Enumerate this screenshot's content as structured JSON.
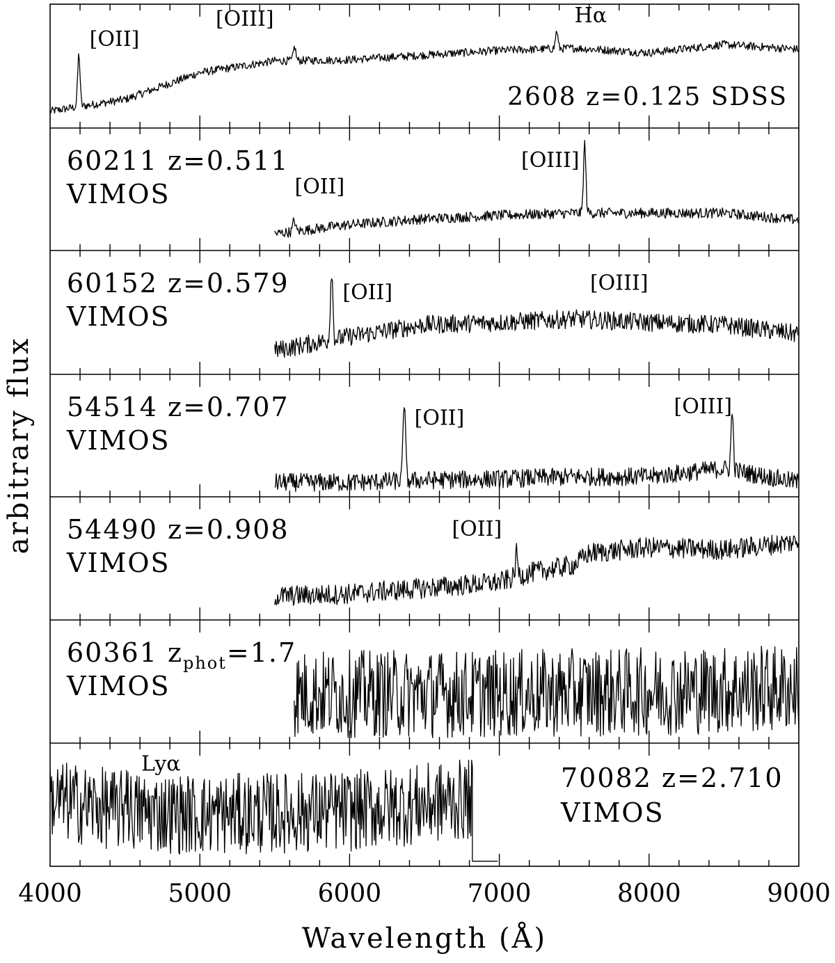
{
  "chart_data": {
    "type": "line",
    "title": "",
    "xlabel": "Wavelength (Å)",
    "ylabel": "arbitrary flux",
    "xlim": [
      4000,
      9000
    ],
    "x_ticks": [
      "4000",
      "5000",
      "6000",
      "7000",
      "8000",
      "9000"
    ],
    "x_tick_values": [
      4000,
      5000,
      6000,
      7000,
      8000,
      9000
    ],
    "minor_tick_step": 200,
    "grid": false,
    "panels": [
      {
        "id": "2608",
        "label": "2608  z=0.125  SDSS",
        "label_position": "right",
        "redshift": 0.125,
        "survey": "SDSS",
        "wavelength_range": [
          4000,
          9000
        ],
        "noise": 0.035,
        "continuum": [
          [
            4000,
            0.12
          ],
          [
            4500,
            0.22
          ],
          [
            5000,
            0.45
          ],
          [
            5500,
            0.55
          ],
          [
            6000,
            0.56
          ],
          [
            6500,
            0.6
          ],
          [
            7000,
            0.64
          ],
          [
            7500,
            0.66
          ],
          [
            8000,
            0.62
          ],
          [
            8500,
            0.69
          ],
          [
            9000,
            0.65
          ]
        ],
        "lines": [
          {
            "label": "[OII]",
            "wavelength": 4192,
            "peak": 0.45,
            "label_at": [
              4430,
              0.68
            ]
          },
          {
            "label": "[OIII]",
            "wavelength": 5633,
            "peak": 0.12,
            "label_at": [
              5300,
              0.85
            ]
          },
          {
            "label": "Hα",
            "wavelength": 7383,
            "peak": 0.15,
            "label_at": [
              7610,
              0.88
            ]
          }
        ]
      },
      {
        "id": "60211",
        "label_line1": "60211  z=0.511",
        "label_line2": "VIMOS",
        "label_position": "left",
        "redshift": 0.511,
        "survey": "VIMOS",
        "wavelength_range": [
          5500,
          9000
        ],
        "noise": 0.045,
        "continuum": [
          [
            5500,
            0.12
          ],
          [
            6000,
            0.2
          ],
          [
            6500,
            0.25
          ],
          [
            7000,
            0.28
          ],
          [
            7500,
            0.3
          ],
          [
            8000,
            0.3
          ],
          [
            8500,
            0.3
          ],
          [
            9000,
            0.24
          ]
        ],
        "lines": [
          {
            "label": "[OII]",
            "wavelength": 5630,
            "peak": 0.1,
            "label_at": [
              5800,
              0.47
            ]
          },
          {
            "label": "[OIII]",
            "wavelength": 7570,
            "peak": 0.6,
            "label_at": [
              7340,
              0.7
            ]
          }
        ]
      },
      {
        "id": "60152",
        "label_line1": "60152  z=0.579",
        "label_line2": "VIMOS",
        "label_position": "left",
        "redshift": 0.579,
        "survey": "VIMOS",
        "wavelength_range": [
          5500,
          9000
        ],
        "noise": 0.08,
        "continuum": [
          [
            5500,
            0.18
          ],
          [
            6000,
            0.3
          ],
          [
            6500,
            0.4
          ],
          [
            7000,
            0.42
          ],
          [
            7500,
            0.45
          ],
          [
            8000,
            0.42
          ],
          [
            8500,
            0.4
          ],
          [
            9000,
            0.32
          ]
        ],
        "lines": [
          {
            "label": "[OII]",
            "wavelength": 5880,
            "peak": 0.6,
            "label_at": [
              6120,
              0.62
            ]
          },
          {
            "label": "[OIII]",
            "wavelength": 7900,
            "peak": 0.0,
            "label_at": [
              7800,
              0.7
            ]
          }
        ]
      },
      {
        "id": "54514",
        "label_line1": "54514  z=0.707",
        "label_line2": "VIMOS",
        "label_position": "left",
        "redshift": 0.707,
        "survey": "VIMOS",
        "wavelength_range": [
          5500,
          9000
        ],
        "noise": 0.08,
        "continuum": [
          [
            5500,
            0.1
          ],
          [
            6000,
            0.1
          ],
          [
            6500,
            0.12
          ],
          [
            7000,
            0.13
          ],
          [
            7500,
            0.15
          ],
          [
            8000,
            0.15
          ],
          [
            8500,
            0.22
          ],
          [
            9000,
            0.1
          ]
        ],
        "lines": [
          {
            "label": "[OII]",
            "wavelength": 6365,
            "peak": 0.7,
            "label_at": [
              6600,
              0.6
            ]
          },
          {
            "label": "[OIII]",
            "wavelength": 8555,
            "peak": 0.5,
            "label_at": [
              8360,
              0.7
            ]
          }
        ]
      },
      {
        "id": "54490",
        "label_line1": "54490  z=0.908",
        "label_line2": "VIMOS",
        "label_position": "left",
        "redshift": 0.908,
        "survey": "VIMOS",
        "wavelength_range": [
          5500,
          9000
        ],
        "noise": 0.09,
        "continuum": [
          [
            5500,
            0.18
          ],
          [
            6000,
            0.2
          ],
          [
            6500,
            0.25
          ],
          [
            7000,
            0.3
          ],
          [
            7200,
            0.38
          ],
          [
            7500,
            0.45
          ],
          [
            7600,
            0.55
          ],
          [
            8000,
            0.6
          ],
          [
            8500,
            0.58
          ],
          [
            9000,
            0.65
          ]
        ],
        "lines": [
          {
            "label": "[OII]",
            "wavelength": 7115,
            "peak": 0.2,
            "label_at": [
              6850,
              0.7
            ]
          }
        ]
      },
      {
        "id": "60361",
        "label_line1": "60361  zphot=1.7",
        "label_line2": "VIMOS",
        "label_position": "left",
        "redshift_phot": 1.7,
        "survey": "VIMOS",
        "wavelength_range": [
          5630,
          9000
        ],
        "noise": 0.38,
        "continuum": [
          [
            5630,
            0.4
          ],
          [
            7000,
            0.4
          ],
          [
            8000,
            0.42
          ],
          [
            9000,
            0.45
          ]
        ],
        "lines": []
      },
      {
        "id": "70082",
        "label_line1": "70082  z=2.710",
        "label_line2": "VIMOS",
        "label_position": "right",
        "redshift": 2.71,
        "survey": "VIMOS",
        "wavelength_range": [
          4000,
          6820
        ],
        "noise": 0.35,
        "continuum": [
          [
            4000,
            0.55
          ],
          [
            4500,
            0.45
          ],
          [
            5000,
            0.42
          ],
          [
            6000,
            0.45
          ],
          [
            6800,
            0.55
          ]
        ],
        "lines": [
          {
            "label": "Lyα",
            "wavelength": 4510,
            "peak": 0.3,
            "label_at": [
              4740,
              0.8
            ]
          }
        ],
        "flat_tail": [
          6820,
          6990,
          0.02
        ]
      }
    ]
  }
}
